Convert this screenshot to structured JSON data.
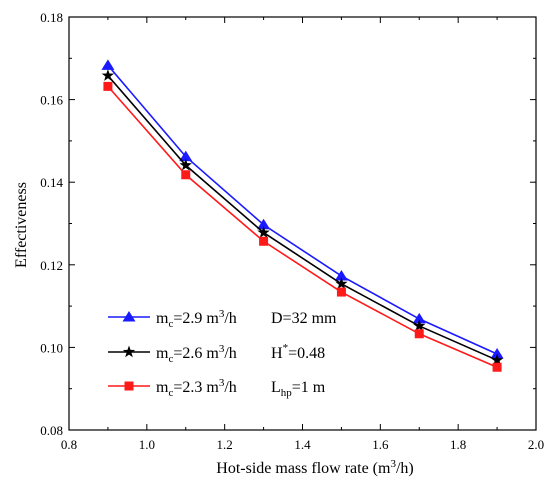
{
  "chart_data": {
    "type": "line",
    "title": "",
    "xlabel": {
      "main": "Hot-side mass flow rate (m",
      "sup": "3",
      "end": "/h)"
    },
    "ylabel": "Effectiveness",
    "xlim": [
      0.8,
      2.0
    ],
    "ylim": [
      0.08,
      0.18
    ],
    "xticks": [
      "0.8",
      "1.0",
      "1.2",
      "1.4",
      "1.6",
      "1.8",
      "2.0"
    ],
    "yticks": [
      "0.08",
      "0.10",
      "0.12",
      "0.14",
      "0.16",
      "0.18"
    ],
    "grid": false,
    "legend_position": "bottom-left",
    "x": [
      0.9,
      1.1,
      1.3,
      1.5,
      1.7,
      1.9
    ],
    "series": [
      {
        "label": {
          "pre": "m",
          "sub": "c",
          "mid": "=2.9 m",
          "sup": "3",
          "post": "/h"
        },
        "color": "#1a1aff",
        "marker": "triangle",
        "values": [
          0.1683,
          0.1462,
          0.1297,
          0.1173,
          0.1069,
          0.0984
        ]
      },
      {
        "label": {
          "pre": "m",
          "sub": "c",
          "mid": "=2.6 m",
          "sup": "3",
          "post": "/h"
        },
        "color": "#000000",
        "marker": "star",
        "values": [
          0.1658,
          0.1441,
          0.1278,
          0.1154,
          0.1052,
          0.0969
        ]
      },
      {
        "label": {
          "pre": "m",
          "sub": "c",
          "mid": "=2.3 m",
          "sup": "3",
          "post": "/h"
        },
        "color": "#ff1a1a",
        "marker": "square",
        "values": [
          0.1632,
          0.1418,
          0.1257,
          0.1134,
          0.1033,
          0.0952
        ]
      }
    ],
    "annotations": {
      "d": "D=32 mm",
      "h": {
        "pre": "H",
        "sup": "*",
        "post": "=0.48"
      },
      "l": {
        "pre": "L",
        "sub": "hp",
        "post": "=1 m"
      }
    }
  }
}
